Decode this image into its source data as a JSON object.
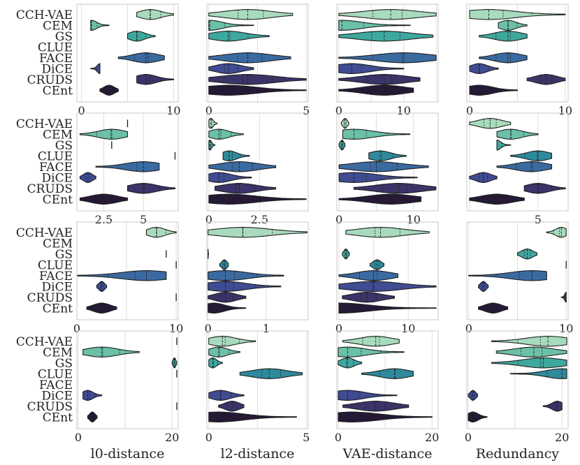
{
  "chart_data": {
    "type": "violin",
    "title": "",
    "methods": [
      "CCH-VAE",
      "CEM",
      "GS",
      "CLUE",
      "FACE",
      "DiCE",
      "CRUDS",
      "CEnt"
    ],
    "colors": [
      "#a8dbbd",
      "#6bc0a8",
      "#3ea89e",
      "#2f8a9c",
      "#3a6aa0",
      "#3f4c92",
      "#3a3468",
      "#241a35"
    ],
    "columns": [
      "l0-distance",
      "l2-distance",
      "VAE-distance",
      "Redundancy"
    ],
    "panels": [
      [
        {
          "xlim": [
            -0.5,
            10.5
          ],
          "ticks": [
            0,
            10
          ],
          "grid": [
            0,
            5,
            10
          ],
          "v": [
            [
              6,
              10,
              7.5
            ],
            [
              1,
              3,
              1.1
            ],
            [
              5,
              8,
              6
            ],
            null,
            [
              4,
              9,
              7
            ],
            [
              1,
              2,
              2
            ],
            [
              6,
              10,
              7
            ],
            [
              2,
              4,
              3
            ]
          ]
        },
        {
          "xlim": [
            -0.1,
            5.1
          ],
          "ticks": [
            0,
            5
          ],
          "grid": [
            0,
            2.5,
            5
          ],
          "v": [
            [
              0,
              4.3,
              2
            ],
            [
              0,
              2.3,
              0.05
            ],
            [
              0,
              3.1,
              1
            ],
            null,
            [
              0,
              4.2,
              2
            ],
            [
              0,
              2.3,
              1
            ],
            [
              0,
              5,
              2
            ],
            [
              0,
              5,
              1
            ]
          ]
        },
        {
          "xlim": [
            -0.3,
            15.3
          ],
          "ticks": [
            0,
            10
          ],
          "grid": [
            0,
            5,
            10,
            15
          ],
          "v": [
            [
              0,
              15,
              8
            ],
            [
              0,
              11,
              0.5
            ],
            [
              0,
              14.5,
              7
            ],
            null,
            [
              0,
              15,
              10
            ],
            [
              0,
              10,
              2
            ],
            [
              0,
              12.5,
              7
            ],
            [
              0,
              11.5,
              7
            ]
          ]
        },
        {
          "xlim": [
            -0.3,
            10.3
          ],
          "ticks": [
            0,
            10
          ],
          "grid": [
            0,
            5,
            10
          ],
          "v": [
            [
              0,
              10,
              2
            ],
            [
              3,
              6,
              4
            ],
            [
              1,
              6,
              4
            ],
            null,
            [
              1,
              6,
              4
            ],
            [
              0,
              3,
              1
            ],
            [
              6,
              10,
              8
            ],
            [
              0,
              5,
              1
            ]
          ]
        }
      ],
      [
        {
          "xlim": [
            0.8,
            7.2
          ],
          "ticks": [
            2.5,
            5.0
          ],
          "grid": [
            2.5,
            5.0
          ],
          "v": [
            [
              4,
              4,
              4
            ],
            [
              1,
              4,
              3
            ],
            [
              3,
              3,
              3
            ],
            [
              7,
              7,
              7
            ],
            [
              2,
              6,
              5
            ],
            [
              1,
              2,
              1.5
            ],
            [
              4,
              7,
              5
            ],
            [
              1,
              4,
              2.5
            ]
          ]
        },
        {
          "xlim": [
            -0.1,
            4.9
          ],
          "ticks": [
            0.0,
            2.5
          ],
          "grid": [
            0,
            2.5
          ],
          "v": [
            [
              0,
              0.4,
              0.1
            ],
            [
              0,
              1.7,
              0.5
            ],
            [
              0,
              0.3,
              0.05
            ],
            [
              0.7,
              2,
              1
            ],
            [
              0,
              3.3,
              1.5
            ],
            [
              0,
              2.1,
              0.5
            ],
            [
              0.3,
              3.3,
              1.5
            ],
            [
              0,
              4.8,
              1
            ]
          ]
        },
        {
          "xlim": [
            -0.3,
            13.3
          ],
          "ticks": [
            0,
            10
          ],
          "grid": [
            0,
            5,
            10
          ],
          "v": [
            [
              0.3,
              1.3,
              0.8
            ],
            [
              0.5,
              9.5,
              2
            ],
            [
              0,
              0.8,
              0.4
            ],
            [
              4,
              9,
              5.5
            ],
            [
              0,
              12,
              5
            ],
            [
              0,
              10.5,
              2
            ],
            [
              2,
              13,
              8
            ],
            [
              0,
              11,
              7
            ]
          ]
        },
        {
          "xlim": [
            -0.2,
            7.2
          ],
          "ticks": [
            5
          ],
          "grid": [
            0,
            5
          ],
          "v": [
            [
              0,
              3,
              1.5
            ],
            [
              2,
              5,
              3
            ],
            [
              2,
              3,
              2
            ],
            [
              3,
              6,
              5
            ],
            [
              2,
              6,
              4.5
            ],
            [
              0,
              2,
              1
            ],
            [
              4,
              7,
              5
            ],
            [
              0,
              4,
              2
            ]
          ]
        }
      ],
      [
        {
          "xlim": [
            0,
            10.2
          ],
          "ticks": [
            0,
            10
          ],
          "grid": [
            0,
            5,
            10
          ],
          "v": [
            [
              7,
              10,
              8
            ],
            null,
            [
              9,
              9,
              9
            ],
            [
              10,
              10,
              10
            ],
            [
              0,
              9,
              7
            ],
            [
              2,
              3,
              2.5
            ],
            [
              10,
              10,
              10
            ],
            [
              1,
              4,
              2.5
            ]
          ]
        },
        {
          "xlim": [
            -0.02,
            1.72
          ],
          "ticks": [
            0,
            1
          ],
          "grid": [
            0,
            1
          ],
          "v": [
            [
              0,
              1.7,
              0.6
            ],
            null,
            [
              0,
              0.01,
              0
            ],
            [
              0.2,
              0.35,
              0.28
            ],
            [
              0,
              1.3,
              0.3
            ],
            [
              0,
              1.25,
              0.3
            ],
            [
              0,
              0.65,
              0.3
            ],
            [
              0,
              0.65,
              0.1
            ]
          ]
        },
        {
          "xlim": [
            -0.3,
            14.3
          ],
          "ticks": [
            0,
            10
          ],
          "grid": [
            0,
            5,
            10
          ],
          "v": [
            [
              1,
              13,
              6
            ],
            null,
            [
              0.5,
              1.5,
              1
            ],
            [
              4.5,
              6.5,
              5.5
            ],
            [
              0,
              8.5,
              5
            ],
            [
              0,
              14,
              5
            ],
            [
              0.5,
              8,
              4
            ],
            [
              0,
              14,
              0.3
            ]
          ]
        },
        {
          "xlim": [
            -0.2,
            10.2
          ],
          "ticks": [
            0,
            10
          ],
          "grid": [
            0,
            5,
            10
          ],
          "v": [
            [
              8,
              10,
              9.5
            ],
            null,
            [
              5,
              7,
              6
            ],
            [
              10,
              10,
              10
            ],
            [
              0,
              8,
              6.5
            ],
            [
              1,
              2,
              1.5
            ],
            [
              9.5,
              10,
              10
            ],
            [
              1,
              4,
              2.5
            ]
          ]
        }
      ],
      [
        {
          "xlim": [
            -0.3,
            21.3
          ],
          "ticks": [
            0,
            20
          ],
          "grid": [
            0,
            10,
            20
          ],
          "v": [
            [
              21,
              21,
              21
            ],
            [
              1,
              13,
              5
            ],
            [
              20,
              21,
              20.5
            ],
            [
              21,
              21,
              21
            ],
            null,
            [
              1,
              5,
              2
            ],
            [
              21,
              21,
              21
            ],
            [
              2,
              4,
              3
            ]
          ]
        },
        {
          "xlim": [
            -0.1,
            5.1
          ],
          "ticks": [
            0,
            5
          ],
          "grid": [
            0,
            2.5,
            5
          ],
          "v": [
            [
              0,
              2.4,
              0.7
            ],
            [
              0,
              1.6,
              0.5
            ],
            [
              0,
              0.7,
              0.2
            ],
            [
              1.6,
              4.8,
              3.1
            ],
            null,
            [
              0,
              1.8,
              0.6
            ],
            [
              0.5,
              1.8,
              1.2
            ],
            [
              0,
              4.5,
              0.5
            ]
          ]
        },
        {
          "xlim": [
            -0.3,
            21.3
          ],
          "ticks": [
            0,
            20
          ],
          "grid": [
            0,
            10,
            20
          ],
          "v": [
            [
              1,
              13,
              8
            ],
            [
              0,
              14,
              2
            ],
            [
              0,
              5,
              2
            ],
            [
              5,
              16,
              12
            ],
            null,
            [
              0,
              12.5,
              2
            ],
            [
              1,
              15,
              8
            ],
            [
              0,
              20,
              3
            ]
          ]
        },
        {
          "xlim": [
            -0.3,
            21.3
          ],
          "ticks": [
            0,
            20
          ],
          "grid": [
            0,
            10,
            20
          ],
          "v": [
            [
              5,
              21,
              17
            ],
            [
              6,
              21,
              14
            ],
            [
              5,
              21,
              16
            ],
            [
              9,
              21,
              20
            ],
            null,
            [
              0,
              2,
              1
            ],
            [
              16,
              20,
              19
            ],
            [
              0,
              4,
              1
            ]
          ]
        }
      ]
    ]
  }
}
